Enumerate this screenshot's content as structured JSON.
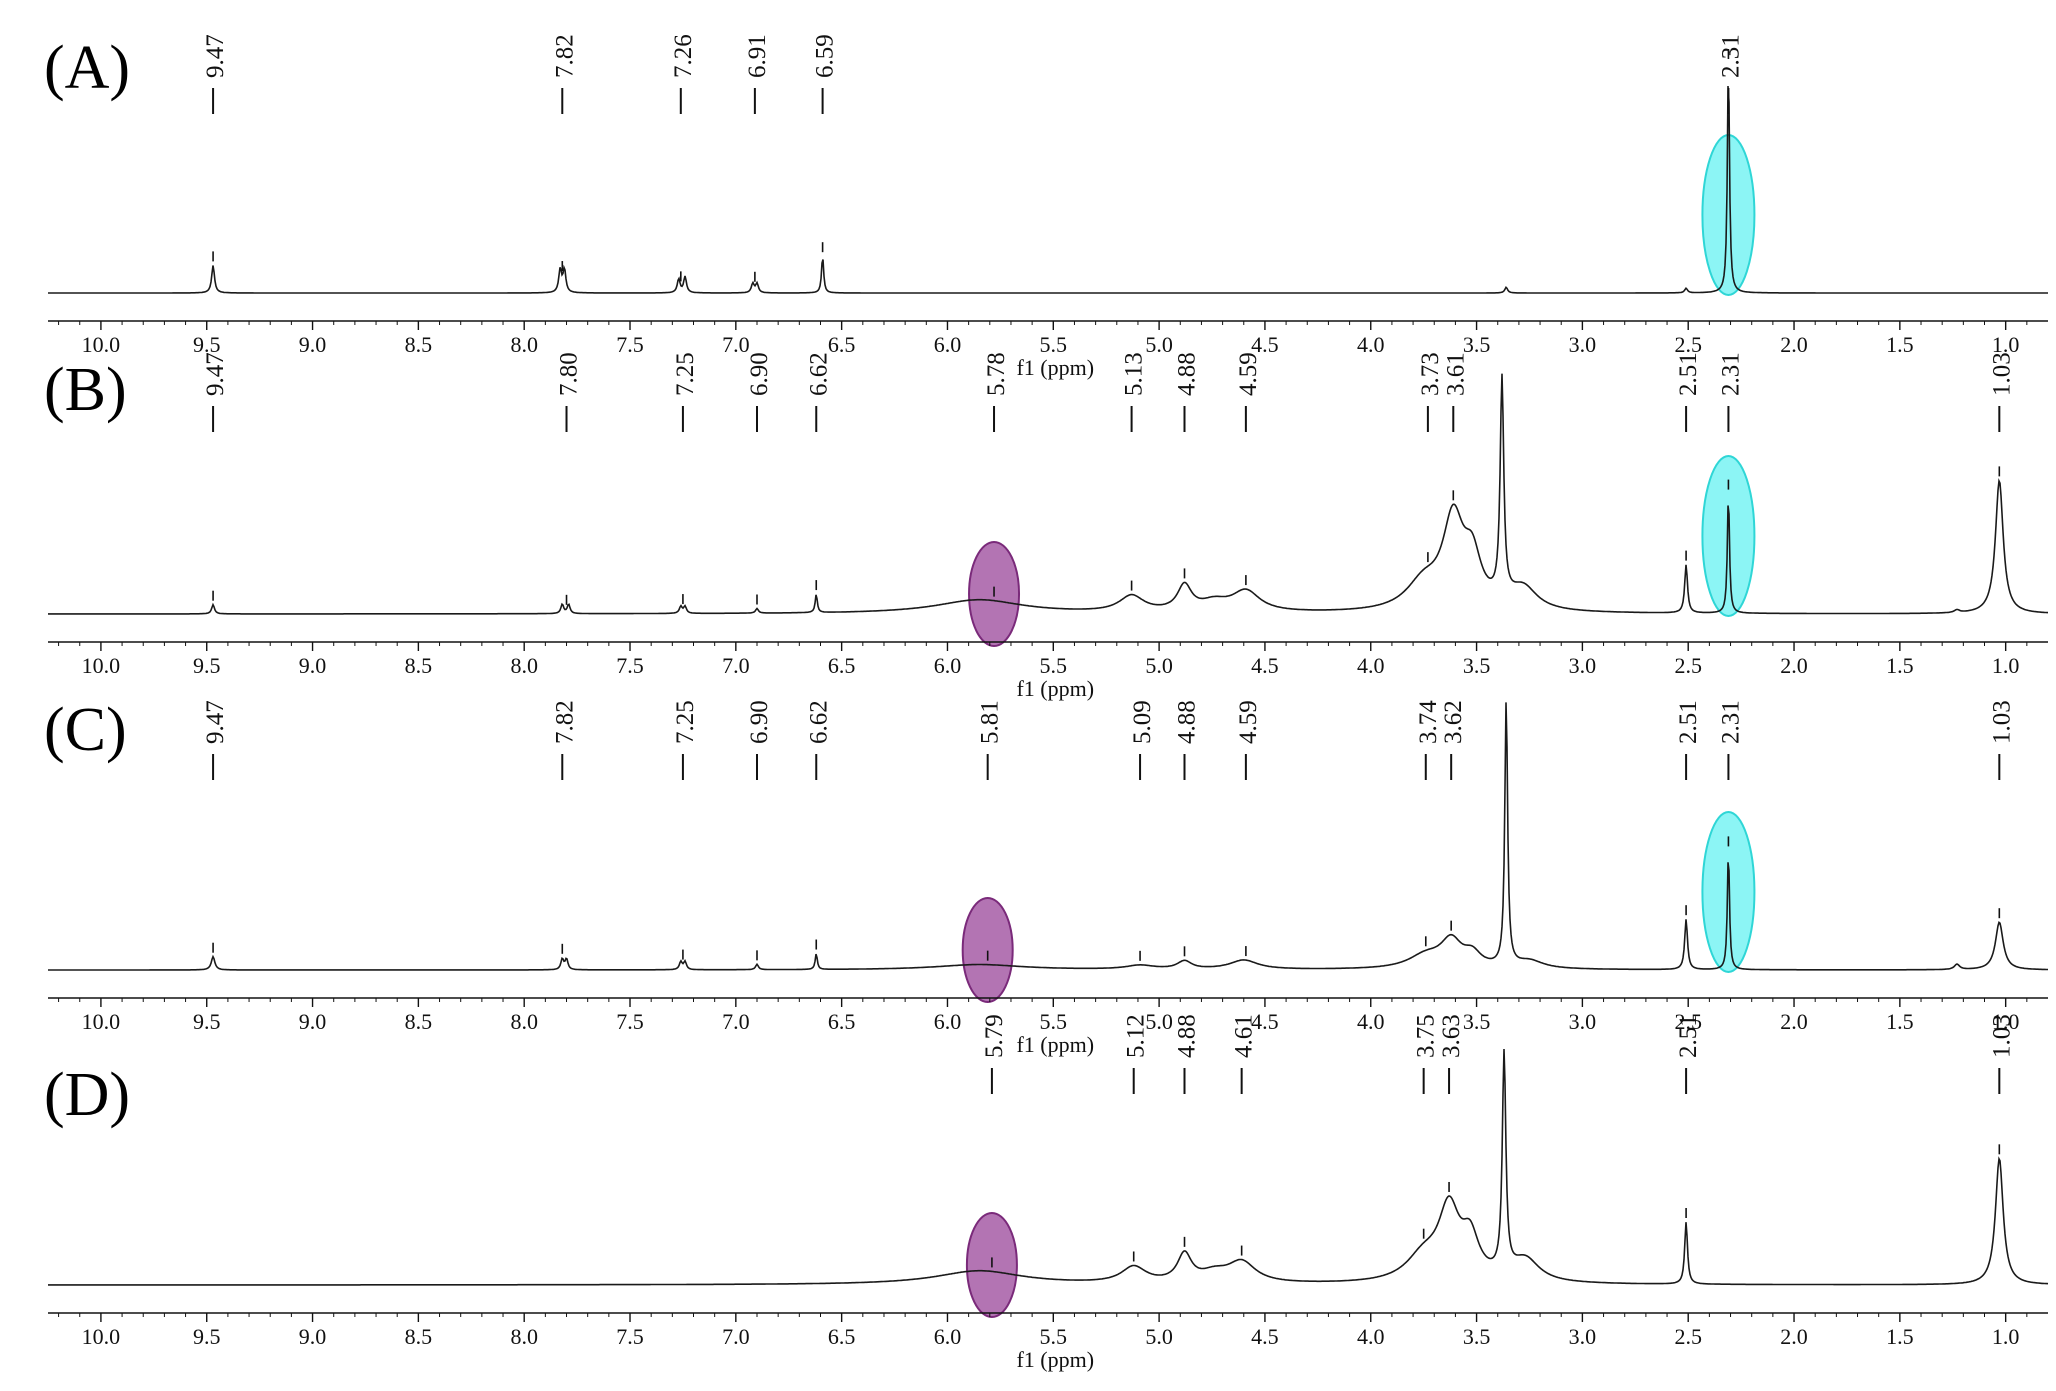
{
  "chart_data": {
    "type": "line",
    "x_axis": {
      "label": "f1 (ppm)",
      "range": [
        10.25,
        0.8
      ],
      "reversed": true,
      "ticks": [
        10.0,
        9.5,
        9.0,
        8.5,
        8.0,
        7.5,
        7.0,
        6.5,
        6.0,
        5.5,
        5.0,
        4.5,
        4.0,
        3.5,
        3.0,
        2.5,
        2.0,
        1.5,
        1.0
      ],
      "tick_labels": [
        "10.0",
        "9.5",
        "9.0",
        "8.5",
        "8.0",
        "7.5",
        "7.0",
        "6.5",
        "6.0",
        "5.5",
        "5.0",
        "4.5",
        "4.0",
        "3.5",
        "3.0",
        "2.5",
        "2.0",
        "1.5",
        "1.0"
      ]
    },
    "grid": false,
    "highlight_colors": {
      "cyan": "#66f2f2",
      "purple": "#a65ca6"
    },
    "panels": [
      {
        "id": "A",
        "letter": "(A)",
        "peak_labels": [
          "9.47",
          "7.82",
          "7.26",
          "6.91",
          "6.59",
          "2.31"
        ],
        "peaks": [
          {
            "x": 9.47,
            "y": 0.12,
            "w": 0.008
          },
          {
            "x": 7.83,
            "y": 0.1,
            "w": 0.008
          },
          {
            "x": 7.81,
            "y": 0.1,
            "w": 0.008
          },
          {
            "x": 7.27,
            "y": 0.06,
            "w": 0.008
          },
          {
            "x": 7.24,
            "y": 0.07,
            "w": 0.008
          },
          {
            "x": 6.92,
            "y": 0.04,
            "w": 0.008
          },
          {
            "x": 6.9,
            "y": 0.04,
            "w": 0.008
          },
          {
            "x": 6.59,
            "y": 0.16,
            "w": 0.006
          },
          {
            "x": 3.36,
            "y": 0.025,
            "w": 0.008
          },
          {
            "x": 2.51,
            "y": 0.02,
            "w": 0.008
          },
          {
            "x": 2.31,
            "y": 1.0,
            "w": 0.006
          }
        ],
        "highlights": [
          {
            "x": 2.31,
            "color": "cyan"
          }
        ]
      },
      {
        "id": "B",
        "letter": "(B)",
        "peak_labels": [
          "9.47",
          "7.80",
          "7.25",
          "6.90",
          "6.62",
          "5.78",
          "5.13",
          "4.88",
          "4.59",
          "3.73",
          "3.61",
          "2.51",
          "2.31",
          "1.03"
        ],
        "peaks": [
          {
            "x": 9.47,
            "y": 0.04,
            "w": 0.008
          },
          {
            "x": 7.82,
            "y": 0.04,
            "w": 0.008
          },
          {
            "x": 7.79,
            "y": 0.04,
            "w": 0.008
          },
          {
            "x": 7.26,
            "y": 0.03,
            "w": 0.008
          },
          {
            "x": 7.24,
            "y": 0.03,
            "w": 0.008
          },
          {
            "x": 6.9,
            "y": 0.02,
            "w": 0.008
          },
          {
            "x": 6.62,
            "y": 0.08,
            "w": 0.006
          },
          {
            "x": 5.85,
            "y": 0.06,
            "w": 0.25
          },
          {
            "x": 5.13,
            "y": 0.07,
            "w": 0.07
          },
          {
            "x": 4.88,
            "y": 0.11,
            "w": 0.04
          },
          {
            "x": 4.74,
            "y": 0.04,
            "w": 0.08
          },
          {
            "x": 4.59,
            "y": 0.09,
            "w": 0.08
          },
          {
            "x": 3.75,
            "y": 0.12,
            "w": 0.1
          },
          {
            "x": 3.61,
            "y": 0.38,
            "w": 0.06
          },
          {
            "x": 3.52,
            "y": 0.2,
            "w": 0.05
          },
          {
            "x": 3.38,
            "y": 0.95,
            "w": 0.01
          },
          {
            "x": 3.28,
            "y": 0.1,
            "w": 0.08
          },
          {
            "x": 2.51,
            "y": 0.21,
            "w": 0.008
          },
          {
            "x": 2.31,
            "y": 0.52,
            "w": 0.006
          },
          {
            "x": 1.23,
            "y": 0.012,
            "w": 0.015
          },
          {
            "x": 1.03,
            "y": 0.58,
            "w": 0.022
          }
        ],
        "highlights": [
          {
            "x": 5.78,
            "color": "purple"
          },
          {
            "x": 2.31,
            "color": "cyan"
          }
        ]
      },
      {
        "id": "C",
        "letter": "(C)",
        "peak_labels": [
          "9.47",
          "7.82",
          "7.25",
          "6.90",
          "6.62",
          "5.81",
          "5.09",
          "4.88",
          "4.59",
          "3.74",
          "3.62",
          "2.51",
          "2.31",
          "1.03"
        ],
        "peaks": [
          {
            "x": 9.47,
            "y": 0.05,
            "w": 0.01
          },
          {
            "x": 7.82,
            "y": 0.04,
            "w": 0.008
          },
          {
            "x": 7.8,
            "y": 0.04,
            "w": 0.008
          },
          {
            "x": 7.26,
            "y": 0.03,
            "w": 0.008
          },
          {
            "x": 7.24,
            "y": 0.03,
            "w": 0.008
          },
          {
            "x": 6.9,
            "y": 0.02,
            "w": 0.008
          },
          {
            "x": 6.62,
            "y": 0.06,
            "w": 0.006
          },
          {
            "x": 5.85,
            "y": 0.02,
            "w": 0.25
          },
          {
            "x": 5.09,
            "y": 0.015,
            "w": 0.08
          },
          {
            "x": 4.88,
            "y": 0.03,
            "w": 0.04
          },
          {
            "x": 4.6,
            "y": 0.035,
            "w": 0.08
          },
          {
            "x": 3.74,
            "y": 0.05,
            "w": 0.1
          },
          {
            "x": 3.62,
            "y": 0.1,
            "w": 0.06
          },
          {
            "x": 3.52,
            "y": 0.05,
            "w": 0.05
          },
          {
            "x": 3.36,
            "y": 1.0,
            "w": 0.008
          },
          {
            "x": 3.25,
            "y": 0.03,
            "w": 0.08
          },
          {
            "x": 2.51,
            "y": 0.19,
            "w": 0.008
          },
          {
            "x": 2.31,
            "y": 0.45,
            "w": 0.006
          },
          {
            "x": 1.23,
            "y": 0.02,
            "w": 0.015
          },
          {
            "x": 1.03,
            "y": 0.18,
            "w": 0.022
          }
        ],
        "highlights": [
          {
            "x": 5.81,
            "color": "purple"
          },
          {
            "x": 2.31,
            "color": "cyan"
          }
        ]
      },
      {
        "id": "D",
        "letter": "(D)",
        "peak_labels": [
          "5.79",
          "5.12",
          "4.88",
          "4.61",
          "3.75",
          "3.63",
          "2.51",
          "1.03"
        ],
        "peaks": [
          {
            "x": 5.85,
            "y": 0.06,
            "w": 0.25
          },
          {
            "x": 5.12,
            "y": 0.07,
            "w": 0.07
          },
          {
            "x": 4.88,
            "y": 0.12,
            "w": 0.04
          },
          {
            "x": 4.74,
            "y": 0.04,
            "w": 0.08
          },
          {
            "x": 4.61,
            "y": 0.09,
            "w": 0.08
          },
          {
            "x": 3.75,
            "y": 0.11,
            "w": 0.1
          },
          {
            "x": 3.63,
            "y": 0.3,
            "w": 0.06
          },
          {
            "x": 3.53,
            "y": 0.17,
            "w": 0.05
          },
          {
            "x": 3.37,
            "y": 0.95,
            "w": 0.01
          },
          {
            "x": 3.27,
            "y": 0.1,
            "w": 0.08
          },
          {
            "x": 2.51,
            "y": 0.27,
            "w": 0.008
          },
          {
            "x": 1.03,
            "y": 0.55,
            "w": 0.022
          }
        ],
        "highlights": [
          {
            "x": 5.79,
            "color": "purple"
          }
        ]
      }
    ]
  }
}
